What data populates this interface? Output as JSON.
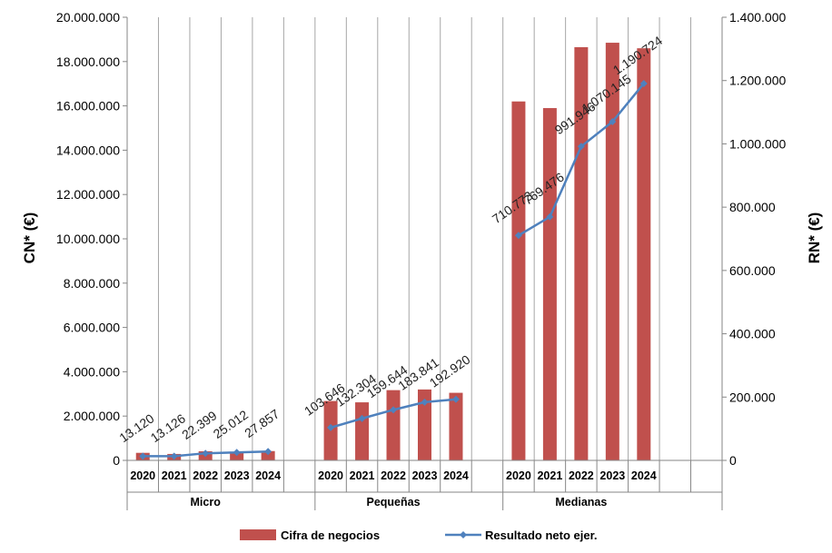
{
  "chart_data": {
    "type": "bar",
    "groups": [
      {
        "name": "Micro",
        "years": [
          "2020",
          "2021",
          "2022",
          "2023",
          "2024"
        ]
      },
      {
        "name": "Pequeñas",
        "years": [
          "2020",
          "2021",
          "2022",
          "2023",
          "2024"
        ]
      },
      {
        "name": "Medianas",
        "years": [
          "2020",
          "2021",
          "2022",
          "2023",
          "2024"
        ]
      }
    ],
    "series": [
      {
        "name": "Cifra de negocios",
        "kind": "bar",
        "axis": "left",
        "color": "#c0504d",
        "values": [
          340000,
          290000,
          410000,
          390000,
          420000,
          2680000,
          2620000,
          3170000,
          3200000,
          3050000,
          16200000,
          15900000,
          18650000,
          18850000,
          18600000
        ]
      },
      {
        "name": "Resultado neto ejer.",
        "kind": "line",
        "axis": "right",
        "color": "#4f81bd",
        "values": [
          13120,
          13126,
          22399,
          25012,
          27857,
          103646,
          132304,
          159644,
          183841,
          192920,
          710773,
          769476,
          991946,
          1070145,
          1190724
        ],
        "labels": [
          "13.120",
          "13.126",
          "22.399",
          "25.012",
          "27.857",
          "103.646",
          "132.304",
          "159.644",
          "183.841",
          "192.920",
          "710.773",
          "769.476",
          "991.946",
          "1.070.145",
          "1.190.724"
        ]
      }
    ],
    "ylabel_left": "CN* (€)",
    "ylabel_right": "RN* (€)",
    "ylim_left": [
      0,
      20000000
    ],
    "ylim_right": [
      0,
      1400000
    ],
    "yticks_left": [
      "0",
      "2.000.000",
      "4.000.000",
      "6.000.000",
      "8.000.000",
      "10.000.000",
      "12.000.000",
      "14.000.000",
      "16.000.000",
      "18.000.000",
      "20.000.000"
    ],
    "yticks_right": [
      "0",
      "200.000",
      "400.000",
      "600.000",
      "800.000",
      "1.000.000",
      "1.200.000",
      "1.400.000"
    ],
    "grid": "vertical",
    "legend_position": "bottom"
  }
}
